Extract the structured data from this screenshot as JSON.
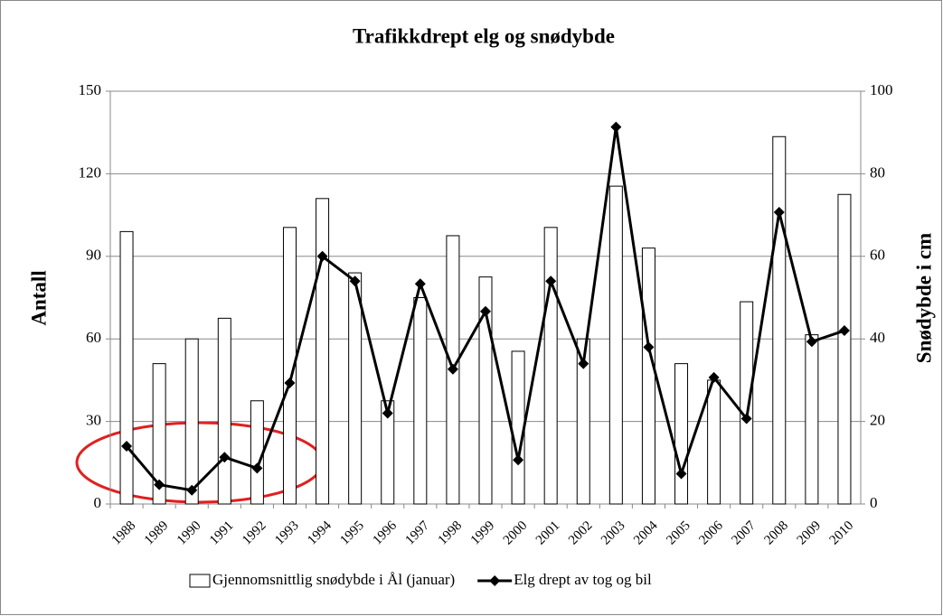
{
  "chart_data": {
    "type": "bar_line",
    "title": "Trafikkdrept elg og snødybde",
    "y_label": "Antall",
    "y2_label": "Snødybde i cm",
    "categories": [
      "1988",
      "1989",
      "1990",
      "1991",
      "1992",
      "1993",
      "1994",
      "1995",
      "1996",
      "1997",
      "1998",
      "1999",
      "2000",
      "2001",
      "2002",
      "2003",
      "2004",
      "2005",
      "2006",
      "2007",
      "2008",
      "2009",
      "2010"
    ],
    "series": [
      {
        "name": "Gjennomsnittlig snødybde i Ål (januar)",
        "type": "bar",
        "axis": "y2",
        "color": "#ffffff",
        "values": [
          66,
          34,
          40,
          45,
          25,
          67,
          74,
          56,
          25,
          50,
          65,
          55,
          37,
          67,
          40,
          77,
          62,
          34,
          30,
          49,
          89,
          41,
          75
        ]
      },
      {
        "name": "Elg drept av tog og bil",
        "type": "line",
        "color": "#000000",
        "values": [
          21,
          7,
          5,
          17,
          13,
          44,
          90,
          81,
          33,
          80,
          49,
          70,
          16,
          81,
          51,
          137,
          57,
          11,
          46,
          31,
          106,
          59,
          63
        ]
      }
    ],
    "ylim": [
      0,
      150
    ],
    "yticks": [
      0,
      30,
      60,
      90,
      120,
      150
    ],
    "y2lim": [
      0,
      100
    ],
    "y2ticks": [
      0,
      20,
      40,
      60,
      80,
      100
    ],
    "grid": true,
    "legend": "bottom"
  }
}
